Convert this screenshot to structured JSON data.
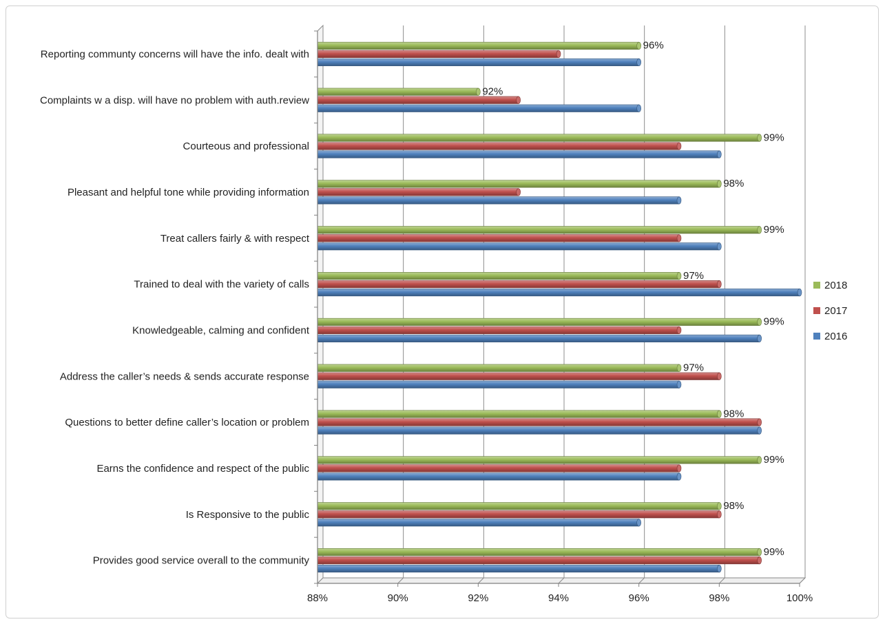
{
  "chart_data": {
    "type": "bar",
    "orientation": "horizontal",
    "title": "",
    "xlabel": "",
    "ylabel": "",
    "xlim": [
      88,
      100
    ],
    "x_ticks": [
      "88%",
      "90%",
      "92%",
      "94%",
      "96%",
      "98%",
      "100%"
    ],
    "x_tick_values": [
      88,
      90,
      92,
      94,
      96,
      98,
      100
    ],
    "grid": true,
    "legend_position": "right",
    "categories": [
      "Reporting communty concerns will have the info. dealt with",
      "Complaints w a disp. will have no problem with auth.review",
      "Courteous and professional",
      "Pleasant and helpful tone while providing information",
      "Treat callers fairly & with respect",
      "Trained to deal with the variety of calls",
      "Knowledgeable, calming and confident",
      "Address the caller’s needs & sends accurate response",
      "Questions to better define caller’s location or problem",
      "Earns the confidence and respect of the public",
      "Is Responsive to the public",
      "Provides good service overall to the community"
    ],
    "series": [
      {
        "name": "2018",
        "color": "#9bbb59",
        "values": [
          96,
          92,
          99,
          98,
          99,
          97,
          99,
          97,
          98,
          99,
          98,
          99
        ],
        "data_labels": [
          "96%",
          "92%",
          "99%",
          "98%",
          "99%",
          "97%",
          "99%",
          "97%",
          "98%",
          "99%",
          "98%",
          "99%"
        ]
      },
      {
        "name": "2017",
        "color": "#c0504d",
        "values": [
          94,
          93,
          97,
          93,
          97,
          98,
          97,
          98,
          99,
          97,
          98,
          99
        ]
      },
      {
        "name": "2016",
        "color": "#4f81bd",
        "values": [
          96,
          96,
          98,
          97,
          98,
          100,
          99,
          97,
          99,
          97,
          96,
          98
        ]
      }
    ]
  }
}
